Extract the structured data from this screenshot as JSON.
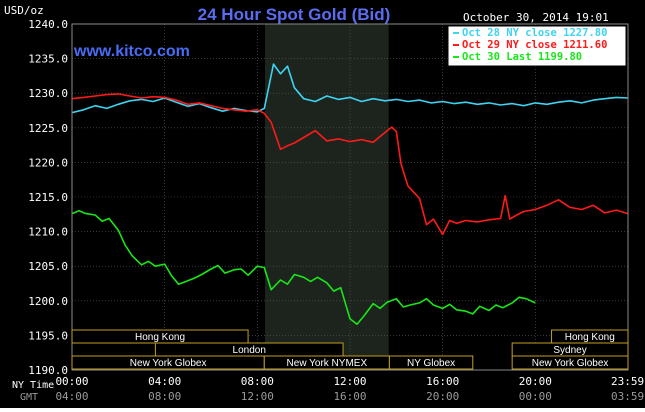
{
  "chart_data": {
    "type": "line",
    "title": "24 Hour Spot Gold (Bid)",
    "ylabel": "USD/oz",
    "watermark": "www.kitco.com",
    "timestamp": "October 30, 2014 19:01",
    "ylim": [
      1190,
      1240
    ],
    "xlim": [
      0,
      24
    ],
    "y_ticks": [
      "1240.0",
      "1235.0",
      "1230.0",
      "1225.0",
      "1220.0",
      "1215.0",
      "1210.0",
      "1205.0",
      "1200.0",
      "1195.0",
      "1190.0"
    ],
    "x_ticks_ny": [
      "00:00",
      "04:00",
      "08:00",
      "12:00",
      "16:00",
      "20:00",
      "23:59"
    ],
    "x_ticks_gmt": [
      "04:00",
      "08:00",
      "12:00",
      "16:00",
      "20:00",
      "00:00",
      "03:59"
    ],
    "x_row_label_ny": "NY Time",
    "x_row_label_gmt": "GMT",
    "grid": true,
    "legend_position": "top-right",
    "nymex_session": [
      8.33,
      13.67
    ],
    "series": [
      {
        "name": "Oct 28 NY close 1227.80",
        "color": "#3fd3f0",
        "x": [
          0,
          0.5,
          1,
          1.5,
          2,
          2.5,
          3,
          3.5,
          4,
          4.5,
          5,
          5.5,
          6,
          6.5,
          7,
          7.5,
          8,
          8.3,
          8.5,
          8.7,
          9,
          9.3,
          9.6,
          10,
          10.5,
          11,
          11.5,
          12,
          12.5,
          13,
          13.5,
          14,
          14.5,
          15,
          15.5,
          16,
          16.5,
          17,
          17.5,
          18,
          18.5,
          19,
          19.5,
          20,
          20.5,
          21,
          21.5,
          22,
          22.5,
          23,
          23.5,
          24
        ],
        "y": [
          1227.2,
          1227.6,
          1228.2,
          1227.8,
          1228.4,
          1228.9,
          1229.1,
          1228.8,
          1229.3,
          1228.7,
          1228.1,
          1228.5,
          1227.9,
          1227.4,
          1227.8,
          1227.5,
          1227.3,
          1227.8,
          1231.0,
          1234.2,
          1232.8,
          1233.9,
          1230.8,
          1229.2,
          1228.8,
          1229.6,
          1229.1,
          1229.4,
          1228.8,
          1229.2,
          1228.9,
          1229.1,
          1228.8,
          1229.0,
          1228.6,
          1228.8,
          1228.5,
          1228.7,
          1228.4,
          1228.6,
          1228.3,
          1228.5,
          1228.2,
          1228.6,
          1228.4,
          1228.7,
          1228.9,
          1228.6,
          1229.0,
          1229.2,
          1229.4,
          1229.3
        ]
      },
      {
        "name": "Oct 29 NY close 1211.60",
        "color": "#ff1a1a",
        "x": [
          0,
          0.5,
          1,
          1.5,
          2,
          2.5,
          3,
          3.5,
          4,
          4.5,
          5,
          5.5,
          6,
          6.5,
          7,
          7.5,
          8,
          8.3,
          8.6,
          9,
          9.3,
          9.6,
          10,
          10.5,
          11,
          11.5,
          12,
          12.5,
          13,
          13.5,
          13.8,
          14,
          14.2,
          14.5,
          15,
          15.3,
          15.6,
          16,
          16.3,
          16.6,
          17,
          17.5,
          18,
          18.5,
          18.7,
          18.9,
          19.2,
          19.5,
          20,
          20.5,
          21,
          21.5,
          22,
          22.5,
          23,
          23.5,
          24
        ],
        "y": [
          1229.2,
          1229.4,
          1229.6,
          1229.8,
          1229.9,
          1229.6,
          1229.3,
          1229.5,
          1229.4,
          1229.0,
          1228.4,
          1228.6,
          1228.2,
          1227.8,
          1227.6,
          1227.4,
          1227.6,
          1227.1,
          1225.8,
          1221.9,
          1222.4,
          1222.8,
          1223.6,
          1224.6,
          1223.1,
          1223.4,
          1223.0,
          1223.3,
          1222.9,
          1224.3,
          1225.1,
          1224.5,
          1219.8,
          1216.6,
          1214.8,
          1211.0,
          1211.8,
          1209.6,
          1211.6,
          1211.2,
          1211.6,
          1211.4,
          1211.7,
          1211.9,
          1215.2,
          1211.8,
          1212.4,
          1212.9,
          1213.2,
          1213.8,
          1214.6,
          1213.5,
          1213.2,
          1213.8,
          1212.7,
          1213.1,
          1212.6
        ]
      },
      {
        "name": "Oct 30 Last 1199.80",
        "color": "#19e619",
        "x": [
          0,
          0.3,
          0.6,
          1,
          1.3,
          1.6,
          2,
          2.3,
          2.6,
          3,
          3.3,
          3.6,
          4,
          4.3,
          4.6,
          5,
          5.3,
          5.6,
          6,
          6.3,
          6.6,
          7,
          7.3,
          7.6,
          8,
          8.3,
          8.6,
          9,
          9.3,
          9.6,
          10,
          10.3,
          10.6,
          11,
          11.3,
          11.6,
          12,
          12.3,
          12.6,
          13,
          13.3,
          13.6,
          14,
          14.3,
          14.6,
          15,
          15.3,
          15.6,
          16,
          16.3,
          16.6,
          17,
          17.3,
          17.6,
          18,
          18.3,
          18.6,
          19,
          19.3,
          19.6,
          20
        ],
        "y": [
          1212.6,
          1213.0,
          1212.6,
          1212.4,
          1211.5,
          1211.9,
          1210.2,
          1208.0,
          1206.5,
          1205.2,
          1205.7,
          1205.0,
          1205.3,
          1203.6,
          1202.4,
          1202.9,
          1203.3,
          1203.8,
          1204.6,
          1205.1,
          1204.0,
          1204.5,
          1204.6,
          1203.7,
          1205.0,
          1204.8,
          1201.6,
          1203.0,
          1202.4,
          1203.8,
          1203.4,
          1202.8,
          1203.4,
          1202.6,
          1201.4,
          1201.9,
          1197.4,
          1196.6,
          1197.8,
          1199.6,
          1198.9,
          1199.8,
          1200.3,
          1199.1,
          1199.4,
          1199.7,
          1200.3,
          1199.4,
          1198.9,
          1199.5,
          1198.7,
          1198.5,
          1198.1,
          1199.2,
          1198.6,
          1199.4,
          1199.0,
          1199.7,
          1200.5,
          1200.3,
          1199.7
        ]
      }
    ],
    "sessions": [
      {
        "label": "Hong Kong",
        "row": 0,
        "start": 0,
        "end": 7.6
      },
      {
        "label": "London",
        "row": 1,
        "start": 3.6,
        "end": 11.7
      },
      {
        "label": "New York Globex",
        "row": 2,
        "start": 0,
        "end": 8.3
      },
      {
        "label": "New York NYMEX",
        "row": 2,
        "start": 8.3,
        "end": 13.7
      },
      {
        "label": "NY Globex",
        "row": 2,
        "start": 13.7,
        "end": 17.3
      },
      {
        "label": "New York Globex",
        "row": 2,
        "start": 19.0,
        "end": 24
      },
      {
        "label": "Hong Kong",
        "row": 0,
        "start": 20.7,
        "end": 24
      },
      {
        "label": "Sydney",
        "row": 1,
        "start": 19.0,
        "end": 24
      }
    ]
  }
}
